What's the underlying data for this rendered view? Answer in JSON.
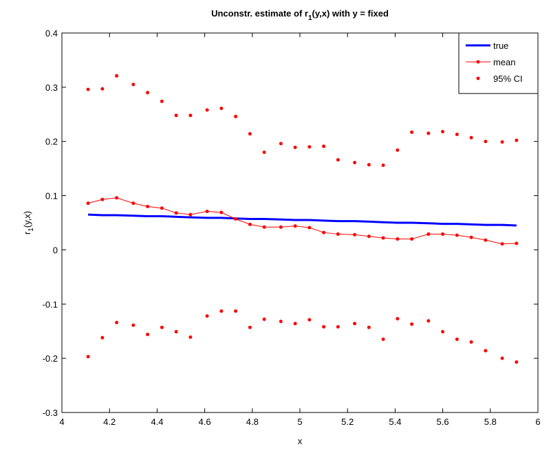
{
  "chart_data": {
    "type": "line",
    "title": [
      "Unconstr. estimate of r",
      "1",
      "(y,x) with y = fixed"
    ],
    "xlabel": "x",
    "ylabel": [
      "r",
      "1",
      "(y,x)"
    ],
    "x": [
      4.11,
      4.17,
      4.23,
      4.3,
      4.36,
      4.42,
      4.48,
      4.54,
      4.61,
      4.67,
      4.73,
      4.79,
      4.85,
      4.92,
      4.98,
      5.04,
      5.1,
      5.16,
      5.23,
      5.29,
      5.35,
      5.41,
      5.47,
      5.54,
      5.6,
      5.66,
      5.72,
      5.78,
      5.85,
      5.91
    ],
    "series": [
      {
        "name": "true",
        "color": "#0000ff",
        "linewidth": 3,
        "marker": false,
        "line": true,
        "values": [
          0.065,
          0.064,
          0.064,
          0.063,
          0.062,
          0.062,
          0.061,
          0.06,
          0.059,
          0.059,
          0.058,
          0.057,
          0.057,
          0.056,
          0.055,
          0.055,
          0.054,
          0.053,
          0.053,
          0.052,
          0.051,
          0.05,
          0.05,
          0.049,
          0.048,
          0.048,
          0.047,
          0.046,
          0.046,
          0.045
        ]
      },
      {
        "name": "mean",
        "color": "#ff0000",
        "linewidth": 1,
        "marker": true,
        "line": true,
        "values": [
          0.086,
          0.093,
          0.096,
          0.086,
          0.08,
          0.077,
          0.068,
          0.065,
          0.071,
          0.069,
          0.057,
          0.047,
          0.042,
          0.042,
          0.044,
          0.041,
          0.032,
          0.029,
          0.028,
          0.025,
          0.022,
          0.02,
          0.02,
          0.029,
          0.029,
          0.027,
          0.023,
          0.018,
          0.011,
          0.012
        ]
      },
      {
        "name": "95% CI",
        "color": "#ff0000",
        "linewidth": 1,
        "marker": true,
        "line": false,
        "values": [
          0.296,
          0.297,
          0.321,
          0.305,
          0.29,
          0.274,
          0.248,
          0.248,
          0.258,
          0.261,
          0.246,
          0.214,
          0.18,
          0.196,
          0.189,
          0.19,
          0.191,
          0.166,
          0.161,
          0.157,
          0.156,
          0.184,
          0.217,
          0.215,
          0.218,
          0.213,
          0.207,
          0.2,
          0.199,
          0.202
        ]
      },
      {
        "color": "#ff0000",
        "linewidth": 1,
        "marker": true,
        "line": false,
        "values": [
          -0.197,
          -0.162,
          -0.134,
          -0.139,
          -0.156,
          -0.143,
          -0.151,
          -0.161,
          -0.122,
          -0.113,
          -0.113,
          -0.143,
          -0.128,
          -0.132,
          -0.136,
          -0.129,
          -0.142,
          -0.142,
          -0.136,
          -0.143,
          -0.165,
          -0.127,
          -0.137,
          -0.131,
          -0.151,
          -0.165,
          -0.17,
          -0.186,
          -0.2,
          -0.207
        ]
      }
    ],
    "xlim": [
      4,
      6
    ],
    "xticks": [
      4,
      4.2,
      4.4,
      4.6,
      4.8,
      5,
      5.2,
      5.4,
      5.6,
      5.8,
      6
    ],
    "ylim": [
      -0.3,
      0.4
    ],
    "yticks": [
      -0.3,
      -0.2,
      -0.1,
      0,
      0.1,
      0.2,
      0.3,
      0.4
    ],
    "grid": false,
    "legend": "upper right"
  }
}
